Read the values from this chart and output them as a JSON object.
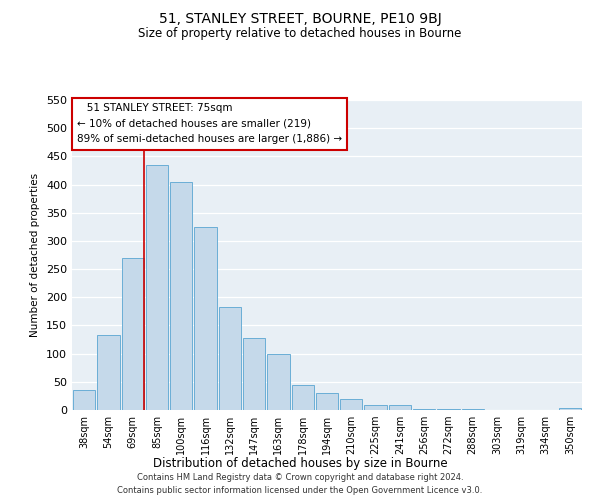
{
  "title": "51, STANLEY STREET, BOURNE, PE10 9BJ",
  "subtitle": "Size of property relative to detached houses in Bourne",
  "xlabel": "Distribution of detached houses by size in Bourne",
  "ylabel": "Number of detached properties",
  "bar_labels": [
    "38sqm",
    "54sqm",
    "69sqm",
    "85sqm",
    "100sqm",
    "116sqm",
    "132sqm",
    "147sqm",
    "163sqm",
    "178sqm",
    "194sqm",
    "210sqm",
    "225sqm",
    "241sqm",
    "256sqm",
    "272sqm",
    "288sqm",
    "303sqm",
    "319sqm",
    "334sqm",
    "350sqm"
  ],
  "bar_values": [
    35,
    133,
    270,
    435,
    405,
    325,
    183,
    127,
    100,
    45,
    30,
    20,
    8,
    8,
    2,
    1,
    1,
    0,
    0,
    0,
    3
  ],
  "bar_color": "#c5d9ea",
  "bar_edge_color": "#6aaed6",
  "ylim": [
    0,
    550
  ],
  "yticks": [
    0,
    50,
    100,
    150,
    200,
    250,
    300,
    350,
    400,
    450,
    500,
    550
  ],
  "vline_color": "#cc0000",
  "annotation_title": "51 STANLEY STREET: 75sqm",
  "annotation_line1": "← 10% of detached houses are smaller (219)",
  "annotation_line2": "89% of semi-detached houses are larger (1,886) →",
  "footer_line1": "Contains HM Land Registry data © Crown copyright and database right 2024.",
  "footer_line2": "Contains public sector information licensed under the Open Government Licence v3.0.",
  "bg_color": "#e8eff5"
}
